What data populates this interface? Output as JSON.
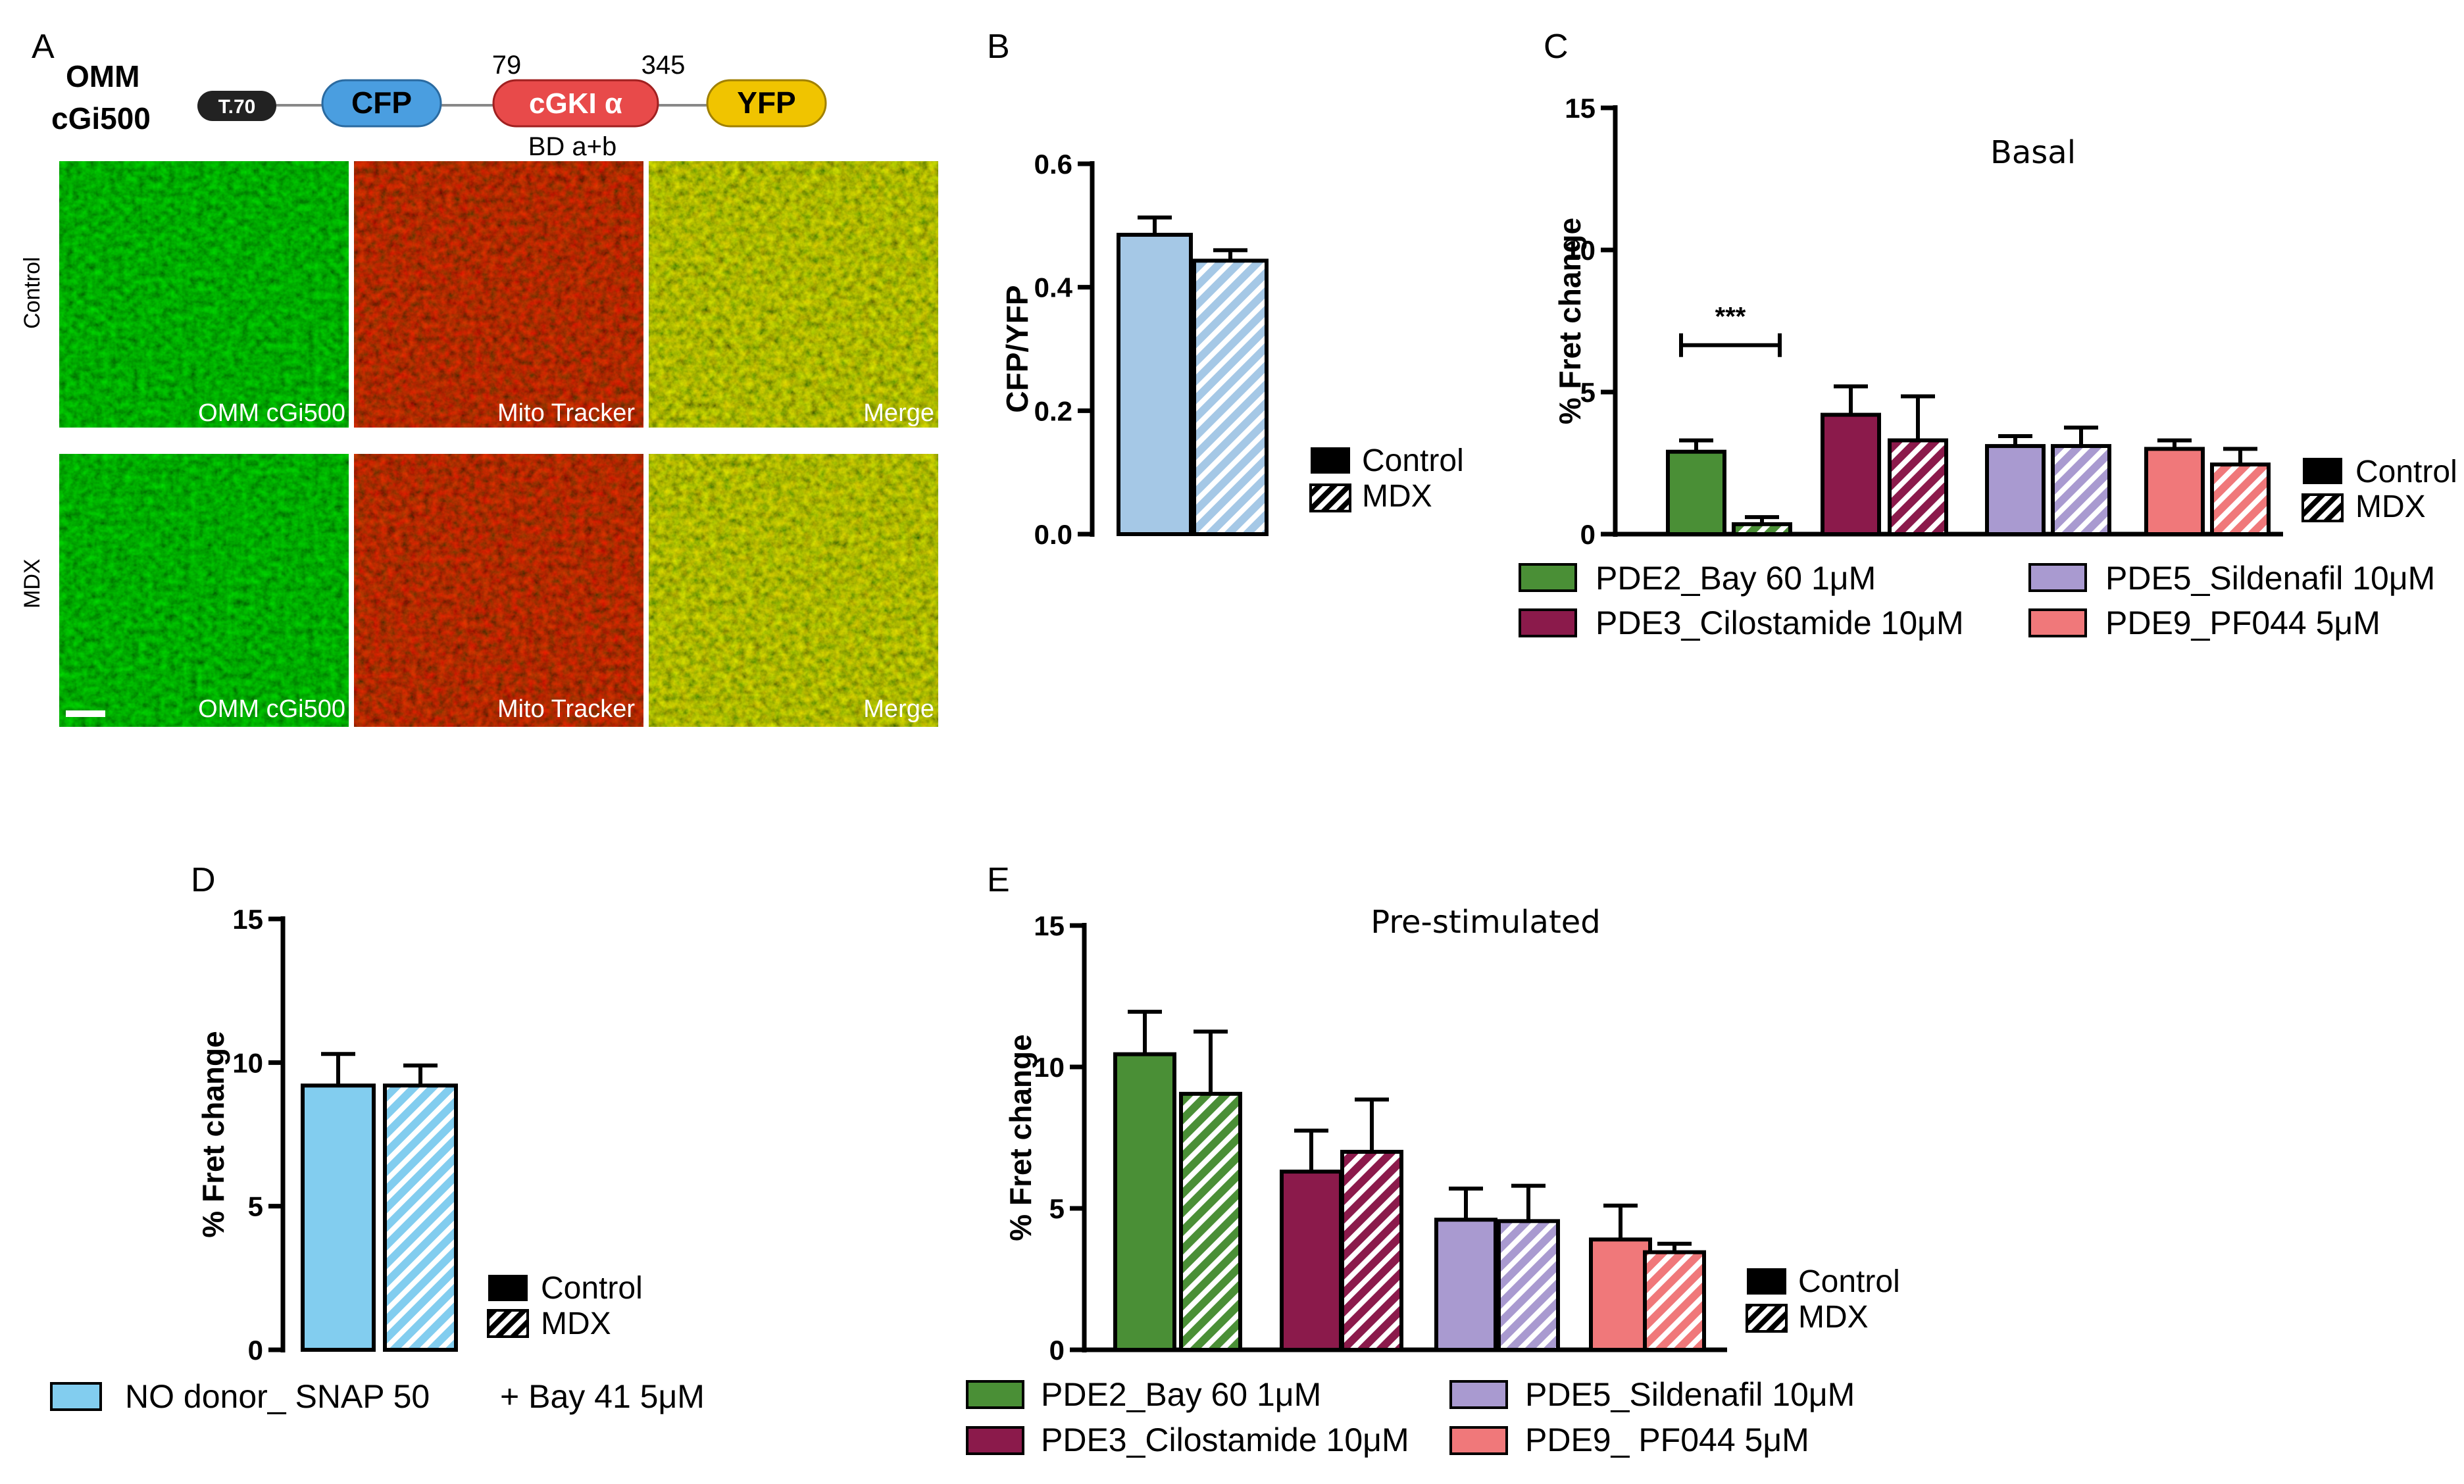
{
  "colors": {
    "pde2": "#4a8f36",
    "pde3": "#8b1a4b",
    "pde5": "#a99ad0",
    "pde9": "#f0787a",
    "cfp_yfp": "#a5c8e6",
    "nodonor": "#82cdef",
    "cfp_box": "#4a9ee0",
    "cgk_box": "#e84a4a",
    "yfp_box": "#f0c400",
    "t70_box": "#222222"
  },
  "panels": {
    "A": {
      "letter": "A",
      "construct": {
        "name_line1": "OMM",
        "name_line2": "cGi500",
        "t70": "T.70",
        "cfp": "CFP",
        "cgk": "cGKI α",
        "yfp": "YFP",
        "num_start": "79",
        "num_end": "345",
        "bd": "BD a+b"
      },
      "rows": [
        "Control",
        "MDX"
      ],
      "images": [
        "OMM cGi500",
        "Mito Tracker",
        "Merge"
      ]
    },
    "B": {
      "letter": "B"
    },
    "C": {
      "letter": "C"
    },
    "D": {
      "letter": "D"
    },
    "E": {
      "letter": "E"
    }
  },
  "legend_common": {
    "control": "Control",
    "mdx": "MDX"
  },
  "legend_pde": {
    "pde2": "PDE2_Bay 60 1μM",
    "pde3": "PDE3_Cilostamide 10μM",
    "pde5": "PDE5_Sildenafil 10μM",
    "pde9": "PDE9_PF044 5μM"
  },
  "legend_pde_e": {
    "pde2": "PDE2_Bay 60 1μM",
    "pde3": "PDE3_Cilostamide 10μM",
    "pde5": "PDE5_Sildenafil 10μM",
    "pde9": "PDE9_ PF044 5μM"
  },
  "legend_d": {
    "no_donor": "NO donor_ SNAP 50",
    "bay41": "+ Bay 41 5μM"
  },
  "chart_data": [
    {
      "panel": "B",
      "type": "bar",
      "ylabel": "CFP/YFP",
      "ylim": [
        0,
        0.6
      ],
      "yticks": [
        "0.0",
        "0.2",
        "0.4",
        "0.6"
      ],
      "series": [
        {
          "name": "Control",
          "values": [
            0.485
          ],
          "errors": [
            0.028
          ]
        },
        {
          "name": "MDX",
          "values": [
            0.443
          ],
          "errors": [
            0.017
          ]
        }
      ]
    },
    {
      "panel": "C",
      "type": "bar",
      "title": "Basal",
      "ylabel": "% Fret change",
      "ylim": [
        0,
        15
      ],
      "yticks": [
        "0",
        "5",
        "10",
        "15"
      ],
      "categories": [
        "PDE2_Bay 60 1μM",
        "PDE3_Cilostamide 10μM",
        "PDE5_Sildenafil 10μM",
        "PDE9_PF044 5μM"
      ],
      "series": [
        {
          "name": "Control",
          "values": [
            2.9,
            4.2,
            3.1,
            3.0
          ],
          "errors": [
            0.4,
            1.0,
            0.35,
            0.3
          ]
        },
        {
          "name": "MDX",
          "values": [
            0.35,
            3.3,
            3.1,
            2.45
          ],
          "errors": [
            0.25,
            1.55,
            0.65,
            0.55
          ]
        }
      ],
      "annotation": "***"
    },
    {
      "panel": "D",
      "type": "bar",
      "ylabel": "% Fret change",
      "ylim": [
        0,
        15
      ],
      "yticks": [
        "0",
        "5",
        "10",
        "15"
      ],
      "categories": [
        "NO donor_ SNAP 50 + Bay 41 5μM"
      ],
      "series": [
        {
          "name": "Control",
          "values": [
            9.2
          ],
          "errors": [
            1.1
          ]
        },
        {
          "name": "MDX",
          "values": [
            9.2
          ],
          "errors": [
            0.7
          ]
        }
      ]
    },
    {
      "panel": "E",
      "type": "bar",
      "title": "Pre-stimulated",
      "ylabel": "% Fret change",
      "ylim": [
        0,
        15
      ],
      "yticks": [
        "0",
        "5",
        "10",
        "15"
      ],
      "categories": [
        "PDE2_Bay 60 1μM",
        "PDE3_Cilostamide 10μM",
        "PDE5_Sildenafil 10μM",
        "PDE9_ PF044 5μM"
      ],
      "series": [
        {
          "name": "Control",
          "values": [
            10.45,
            6.3,
            4.6,
            3.9
          ],
          "errors": [
            1.5,
            1.45,
            1.1,
            1.2
          ]
        },
        {
          "name": "MDX",
          "values": [
            9.05,
            7.0,
            4.55,
            3.45
          ],
          "errors": [
            2.2,
            1.85,
            1.25,
            0.3
          ]
        }
      ]
    }
  ]
}
